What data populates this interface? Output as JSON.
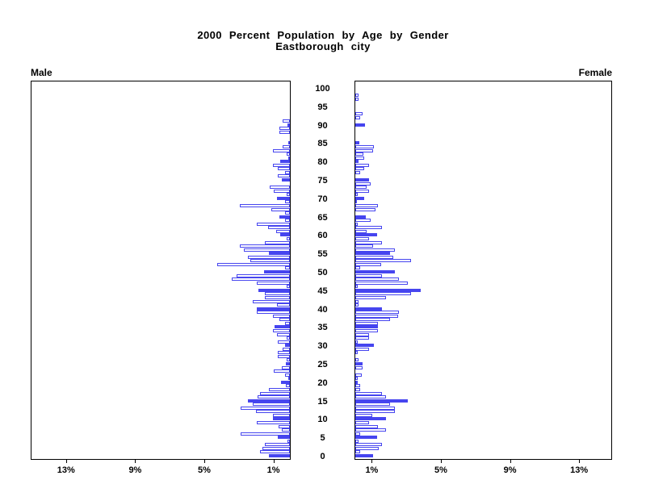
{
  "title": {
    "line1": "2000 Percent Population by Age by Gender",
    "line2": "Eastborough city"
  },
  "panel_labels": {
    "left": "Male",
    "right": "Female"
  },
  "colors": {
    "bar_blue": "#4645ef",
    "axis_black": "#000000",
    "background": "#ffffff"
  },
  "chart_data": {
    "type": "bar",
    "subtype": "population-pyramid",
    "title": "2000 Percent Population by Age by Gender",
    "subtitle": "Eastborough city",
    "orientation": "horizontal, male bars extend left, female bars extend right",
    "unit": "percent",
    "x_axis": {
      "tick_percents": [
        1,
        5,
        9,
        13
      ],
      "tick_label_suffix": "%",
      "max_percent": 15,
      "left_tick_labels": [
        "13%",
        "9%",
        "5%",
        "1%"
      ],
      "right_tick_labels": [
        "1%",
        "5%",
        "9%",
        "13%"
      ]
    },
    "y_axis": {
      "min_age": 0,
      "max_age": 100,
      "label_every": 5
    },
    "age_tick_labels": [
      "0",
      "5",
      "10",
      "15",
      "20",
      "25",
      "30",
      "35",
      "40",
      "45",
      "50",
      "55",
      "60",
      "65",
      "70",
      "75",
      "80",
      "85",
      "90",
      "95",
      "100"
    ],
    "solid_fill_rule": "bars for ages divisible by 5 are solid blue; all other ages are white with blue outline",
    "legend_position": "none",
    "grid": false,
    "series": [
      {
        "name": "Male",
        "values_by_single_year_age_0_to_100": [
          1.24,
          1.71,
          1.61,
          1.43,
          0.15,
          0.72,
          2.86,
          0.49,
          0.65,
          1.91,
          0.99,
          1.0,
          1.97,
          2.86,
          2.17,
          2.44,
          1.85,
          1.73,
          1.24,
          0.25,
          0.51,
          0.1,
          0.26,
          0.94,
          0.49,
          0.25,
          0.2,
          0.69,
          0.69,
          0.4,
          0.3,
          0.7,
          0.2,
          0.73,
          1.0,
          0.88,
          0.3,
          0.6,
          1.0,
          1.94,
          1.94,
          0.76,
          2.13,
          1.47,
          1.47,
          1.81,
          0.2,
          1.94,
          3.37,
          3.09,
          1.5,
          0.3,
          4.23,
          2.31,
          2.44,
          1.24,
          2.67,
          2.9,
          1.43,
          0.2,
          0.54,
          0.8,
          1.27,
          1.94,
          0.3,
          0.6,
          0.3,
          1.07,
          2.9,
          0.28,
          0.76,
          0.2,
          0.96,
          1.19,
          0,
          0.49,
          0.72,
          0.3,
          0.72,
          1.0,
          0.54,
          0.1,
          0.2,
          1.0,
          0.4,
          0.1,
          0,
          0,
          0.6,
          0.6,
          0.15,
          0.4,
          0,
          0,
          0,
          0,
          0,
          0,
          0,
          0,
          0
        ]
      },
      {
        "name": "Female",
        "values_by_single_year_age_0_to_100": [
          1.03,
          0.28,
          1.34,
          1.53,
          0.2,
          1.25,
          0.3,
          1.76,
          1.29,
          0.78,
          1.76,
          1.0,
          2.27,
          2.27,
          1.99,
          3.05,
          1.76,
          1.53,
          0.3,
          0.3,
          0.15,
          0.12,
          0.39,
          0,
          0.42,
          0.4,
          0.2,
          0,
          0.12,
          0.78,
          1.06,
          0.12,
          0.78,
          0.78,
          1.29,
          1.29,
          1.29,
          1.99,
          2.46,
          2.54,
          1.56,
          0.2,
          0.2,
          1.76,
          3.21,
          3.79,
          0.15,
          3.04,
          2.54,
          1.53,
          2.27,
          0.3,
          1.49,
          3.21,
          2.18,
          1.99,
          2.27,
          1.03,
          1.53,
          0.78,
          1.26,
          0.67,
          1.53,
          0.12,
          0.87,
          0.59,
          0,
          1.18,
          1.29,
          0.1,
          0.51,
          0.15,
          0.78,
          0.67,
          0.87,
          0.78,
          0,
          0.3,
          0.51,
          0.78,
          0.2,
          0.51,
          0.47,
          1.03,
          1.06,
          0.23,
          0,
          0,
          0,
          0,
          0.56,
          0,
          0.28,
          0.44,
          0,
          0,
          0,
          0.2,
          0.2,
          0,
          0
        ]
      }
    ]
  }
}
